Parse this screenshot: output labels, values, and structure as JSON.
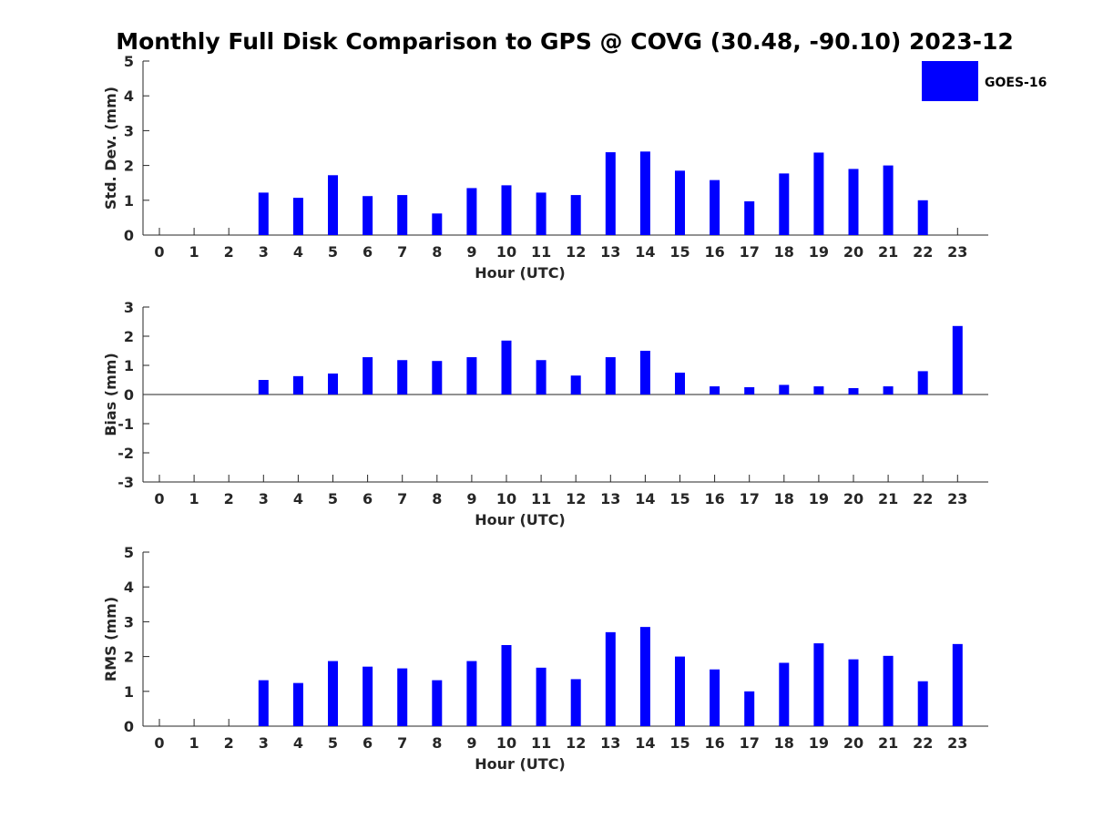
{
  "title": "Monthly Full Disk Comparison to GPS @ COVG (30.48, -90.10) 2023-12",
  "legend": {
    "label": "GOES-16",
    "color": "#0000ff",
    "placement": "top-right"
  },
  "chart_data": [
    {
      "type": "bar",
      "ylabel": "Std. Dev. (mm)",
      "xlabel": "Hour (UTC)",
      "ylim": [
        0,
        5
      ],
      "yticks": [
        "0",
        "1",
        "2",
        "3",
        "4",
        "5"
      ],
      "categories": [
        "0",
        "1",
        "2",
        "3",
        "4",
        "5",
        "6",
        "7",
        "8",
        "9",
        "10",
        "11",
        "12",
        "13",
        "14",
        "15",
        "16",
        "17",
        "18",
        "19",
        "20",
        "21",
        "22",
        "23"
      ],
      "series": [
        {
          "name": "GOES-16",
          "values": [
            null,
            null,
            null,
            1.22,
            1.07,
            1.72,
            1.12,
            1.15,
            0.62,
            1.35,
            1.43,
            1.22,
            1.15,
            2.38,
            2.4,
            1.85,
            1.58,
            0.97,
            1.77,
            2.37,
            1.9,
            2.0,
            1.0,
            null
          ]
        }
      ]
    },
    {
      "type": "bar",
      "ylabel": "Bias (mm)",
      "xlabel": "Hour (UTC)",
      "ylim": [
        -3,
        3
      ],
      "yticks": [
        "-3",
        "-2",
        "-1",
        "0",
        "1",
        "2",
        "3"
      ],
      "zero_line": true,
      "categories": [
        "0",
        "1",
        "2",
        "3",
        "4",
        "5",
        "6",
        "7",
        "8",
        "9",
        "10",
        "11",
        "12",
        "13",
        "14",
        "15",
        "16",
        "17",
        "18",
        "19",
        "20",
        "21",
        "22",
        "23"
      ],
      "series": [
        {
          "name": "GOES-16",
          "values": [
            null,
            null,
            null,
            0.5,
            0.63,
            0.72,
            1.28,
            1.18,
            1.15,
            1.28,
            1.85,
            1.18,
            0.65,
            1.28,
            1.5,
            0.75,
            0.28,
            0.25,
            0.33,
            0.28,
            0.22,
            0.28,
            0.8,
            2.35
          ]
        }
      ]
    },
    {
      "type": "bar",
      "ylabel": "RMS (mm)",
      "xlabel": "Hour (UTC)",
      "ylim": [
        0,
        5
      ],
      "yticks": [
        "0",
        "1",
        "2",
        "3",
        "4",
        "5"
      ],
      "categories": [
        "0",
        "1",
        "2",
        "3",
        "4",
        "5",
        "6",
        "7",
        "8",
        "9",
        "10",
        "11",
        "12",
        "13",
        "14",
        "15",
        "16",
        "17",
        "18",
        "19",
        "20",
        "21",
        "22",
        "23"
      ],
      "series": [
        {
          "name": "GOES-16",
          "values": [
            null,
            null,
            null,
            1.32,
            1.24,
            1.87,
            1.71,
            1.66,
            1.32,
            1.87,
            2.33,
            1.68,
            1.35,
            2.7,
            2.85,
            2.0,
            1.63,
            1.0,
            1.82,
            2.38,
            1.92,
            2.02,
            1.29,
            2.36
          ]
        }
      ]
    }
  ]
}
